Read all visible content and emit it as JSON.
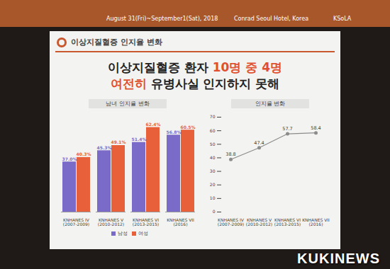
{
  "banner": {
    "date": "August 31(Fri)~September1(Sat), 2018",
    "venue": "Conrad Seoul Hotel, Korea",
    "organizer": "KSoLA"
  },
  "slide_title": "이상지질혈증 인지율 변화",
  "headline": [
    [
      {
        "text": "이상지질혈증 환자 ",
        "highlight": false
      },
      {
        "text": "10명 중 4명",
        "highlight": true
      }
    ],
    [
      {
        "text": "여전히",
        "highlight": true
      },
      {
        "text": " 유병사실 인지하지 못해",
        "highlight": false
      }
    ]
  ],
  "watermark": "KUKINEWS",
  "chart_data": [
    {
      "type": "bar",
      "title": "남녀 인지율 변화",
      "categories": [
        "KNHANES IV (2007-2009)",
        "KNHANES V (2010-2012)",
        "KNHANES VI (2013-2015)",
        "KNHANES VII (2016)"
      ],
      "series": [
        {
          "name": "남성",
          "color": "#7a6bc8",
          "values": [
            37.0,
            45.3,
            51.4,
            56.8
          ],
          "value_labels": [
            "37.0%",
            "45.3%",
            "51.4%",
            "56.8%"
          ]
        },
        {
          "name": "여성",
          "color": "#e8603a",
          "values": [
            40.3,
            49.1,
            62.4,
            60.5
          ],
          "value_labels": [
            "40.3%",
            "49.1%",
            "62.4%",
            "60.5%"
          ]
        }
      ],
      "ylim": [
        0,
        70
      ],
      "data_labels": true,
      "tick_labels": "x",
      "legend": "bottom"
    },
    {
      "type": "line",
      "title": "인지율 변화",
      "categories": [
        "KNHANES IV (2007-2009)",
        "KNHANES V (2010-2012)",
        "KNHANES VI (2013-2015)",
        "KNHANES VII (2016)"
      ],
      "values": [
        38.8,
        47.4,
        57.7,
        58.4
      ],
      "color": "#8c8c8c",
      "marker": "circle",
      "ylim": [
        0,
        70
      ],
      "yticks": [
        0,
        10,
        20,
        30,
        40,
        50,
        60,
        70
      ],
      "data_labels": true,
      "grid": false
    }
  ]
}
